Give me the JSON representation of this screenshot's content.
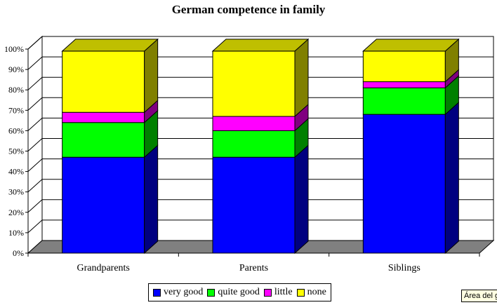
{
  "chart_data": {
    "type": "bar",
    "stacked": true,
    "three_d": true,
    "title": "German competence in family",
    "categories": [
      "Grandparents",
      "Parents",
      "Siblings"
    ],
    "series": [
      {
        "name": "very good",
        "color": "#0000ff",
        "values": [
          47,
          47,
          68
        ]
      },
      {
        "name": "quite good",
        "color": "#00ff00",
        "values": [
          17,
          13,
          13
        ]
      },
      {
        "name": "little",
        "color": "#ff00ff",
        "values": [
          5,
          7,
          3
        ]
      },
      {
        "name": "none",
        "color": "#ffff00",
        "values": [
          30,
          32,
          15
        ]
      }
    ],
    "y_ticks": [
      "0%",
      "10%",
      "20%",
      "30%",
      "40%",
      "50%",
      "60%",
      "70%",
      "80%",
      "90%",
      "100%"
    ],
    "ylim": [
      0,
      100
    ],
    "grid": true,
    "legend_position": "bottom"
  },
  "tooltip": {
    "text": "Área del gráfico"
  }
}
